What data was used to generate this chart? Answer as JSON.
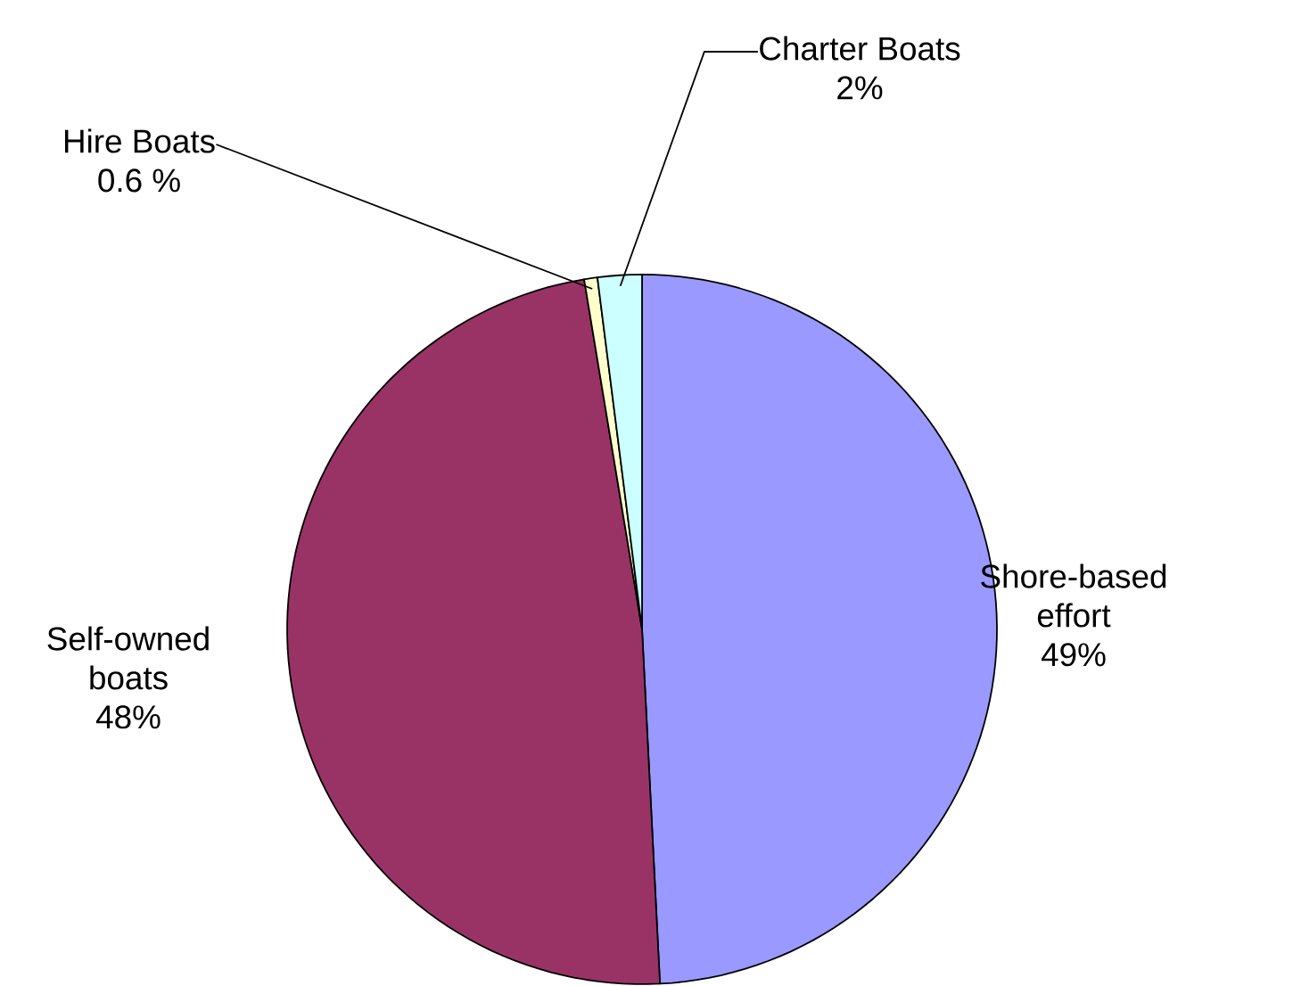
{
  "chart_data": {
    "type": "pie",
    "categories": [
      "Shore-based effort",
      "Self-owned boats",
      "Hire Boats",
      "Charter Boats"
    ],
    "values": [
      49,
      48,
      0.6,
      2
    ],
    "value_labels": [
      "49%",
      "48%",
      "0.6 %",
      "2%"
    ],
    "colors": [
      "#9999ff",
      "#993366",
      "#ffffcc",
      "#ccffff"
    ]
  }
}
